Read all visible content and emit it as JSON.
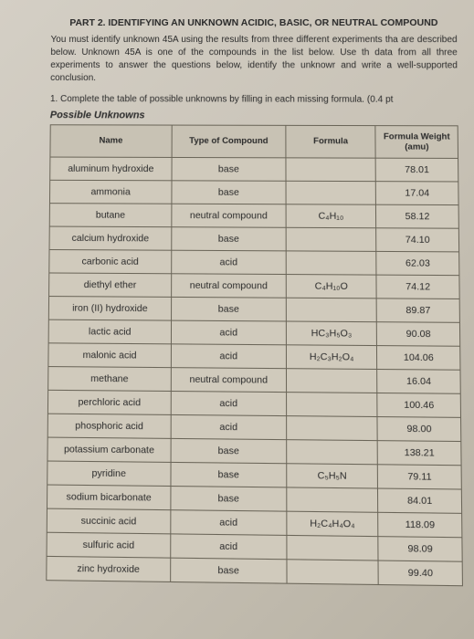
{
  "header": {
    "title": "PART 2. IDENTIFYING AN UNKNOWN ACIDIC, BASIC, OR NEUTRAL COMPOUND",
    "text": "You must identify unknown 45A using the results from three different experiments tha are described below. Unknown 45A is one of the compounds in the list below. Use th data from all three experiments to answer the questions below, identify the unknowr and write a well-supported conclusion."
  },
  "instruction": "1.   Complete the table of possible unknowns by filling in each missing formula. (0.4 pt",
  "table": {
    "title": "Possible Unknowns",
    "columns": [
      "Name",
      "Type of Compound",
      "Formula",
      "Formula Weight (amu)"
    ],
    "rows": [
      {
        "name": "aluminum hydroxide",
        "type": "base",
        "formula": "",
        "weight": "78.01"
      },
      {
        "name": "ammonia",
        "type": "base",
        "formula": "",
        "weight": "17.04"
      },
      {
        "name": "butane",
        "type": "neutral compound",
        "formula": "C₄H₁₀",
        "weight": "58.12"
      },
      {
        "name": "calcium hydroxide",
        "type": "base",
        "formula": "",
        "weight": "74.10"
      },
      {
        "name": "carbonic acid",
        "type": "acid",
        "formula": "",
        "weight": "62.03"
      },
      {
        "name": "diethyl ether",
        "type": "neutral compound",
        "formula": "C₄H₁₀O",
        "weight": "74.12"
      },
      {
        "name": "iron (II) hydroxide",
        "type": "base",
        "formula": "",
        "weight": "89.87"
      },
      {
        "name": "lactic acid",
        "type": "acid",
        "formula": "HC₃H₅O₃",
        "weight": "90.08"
      },
      {
        "name": "malonic acid",
        "type": "acid",
        "formula": "H₂C₃H₂O₄",
        "weight": "104.06"
      },
      {
        "name": "methane",
        "type": "neutral compound",
        "formula": "",
        "weight": "16.04"
      },
      {
        "name": "perchloric acid",
        "type": "acid",
        "formula": "",
        "weight": "100.46"
      },
      {
        "name": "phosphoric acid",
        "type": "acid",
        "formula": "",
        "weight": "98.00"
      },
      {
        "name": "potassium carbonate",
        "type": "base",
        "formula": "",
        "weight": "138.21"
      },
      {
        "name": "pyridine",
        "type": "base",
        "formula": "C₅H₅N",
        "weight": "79.11"
      },
      {
        "name": "sodium bicarbonate",
        "type": "base",
        "formula": "",
        "weight": "84.01"
      },
      {
        "name": "succinic acid",
        "type": "acid",
        "formula": "H₂C₄H₄O₄",
        "weight": "118.09"
      },
      {
        "name": "sulfuric acid",
        "type": "acid",
        "formula": "",
        "weight": "98.09"
      },
      {
        "name": "zinc hydroxide",
        "type": "base",
        "formula": "",
        "weight": "99.40"
      }
    ]
  }
}
